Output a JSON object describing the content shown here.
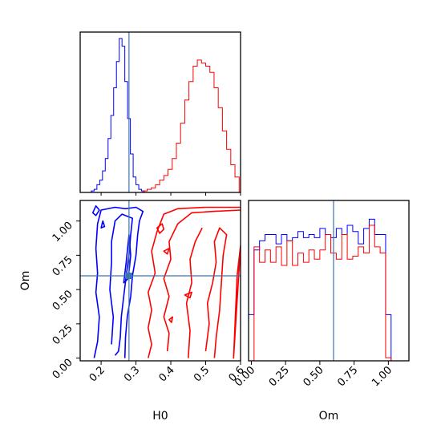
{
  "chart_data": {
    "type": "corner",
    "parameters": [
      "H0",
      "Om"
    ],
    "truth": {
      "H0": 0.28,
      "Om": 0.6
    },
    "colors": {
      "blue": "#0000ff",
      "red": "#ff0000",
      "truth": "#3a76b0"
    },
    "axes": {
      "H0": {
        "label": "H0",
        "range": [
          0.14,
          0.6
        ],
        "ticks": [
          "0.2",
          "0.3",
          "0.4",
          "0.5",
          "0.6"
        ]
      },
      "Om": {
        "label": "Om",
        "range": [
          -0.02,
          1.15
        ],
        "ticks": [
          "0.00",
          "0.25",
          "0.50",
          "0.75",
          "1.00"
        ]
      }
    },
    "hist_H0": {
      "blue": {
        "edges": [
          0.14,
          0.148,
          0.156,
          0.164,
          0.172,
          0.18,
          0.188,
          0.196,
          0.204,
          0.212,
          0.22,
          0.228,
          0.236,
          0.244,
          0.252,
          0.26,
          0.268,
          0.276,
          0.284,
          0.292,
          0.3,
          0.308,
          0.316,
          0.324,
          0.332,
          0.34
        ],
        "counts": [
          0,
          0,
          0,
          0,
          0.01,
          0.02,
          0.05,
          0.08,
          0.14,
          0.22,
          0.35,
          0.5,
          0.68,
          0.85,
          1.0,
          0.95,
          0.72,
          0.48,
          0.25,
          0.1,
          0.05,
          0.02,
          0.01,
          0,
          0
        ]
      },
      "red": {
        "edges": [
          0.32,
          0.332,
          0.344,
          0.356,
          0.368,
          0.38,
          0.392,
          0.404,
          0.416,
          0.428,
          0.44,
          0.452,
          0.464,
          0.476,
          0.488,
          0.5,
          0.512,
          0.524,
          0.536,
          0.548,
          0.56,
          0.572,
          0.584,
          0.596
        ],
        "counts": [
          0.01,
          0.02,
          0.03,
          0.05,
          0.08,
          0.11,
          0.15,
          0.22,
          0.32,
          0.45,
          0.6,
          0.72,
          0.82,
          0.86,
          0.84,
          0.82,
          0.78,
          0.68,
          0.55,
          0.4,
          0.28,
          0.18,
          0.1
        ]
      }
    },
    "hist_Om": {
      "blue": {
        "edges": [
          -0.02,
          0.02,
          0.06,
          0.1,
          0.14,
          0.18,
          0.22,
          0.26,
          0.3,
          0.34,
          0.38,
          0.42,
          0.46,
          0.5,
          0.54,
          0.58,
          0.62,
          0.66,
          0.7,
          0.74,
          0.78,
          0.82,
          0.86,
          0.9,
          0.94,
          0.98,
          1.02,
          1.06,
          1.1,
          1.15
        ],
        "counts": [
          0.3,
          0.72,
          0.78,
          0.82,
          0.82,
          0.76,
          0.82,
          0.78,
          0.8,
          0.84,
          0.8,
          0.82,
          0.8,
          0.86,
          0.82,
          0.8,
          0.86,
          0.82,
          0.88,
          0.84,
          0.76,
          0.86,
          0.92,
          0.82,
          0.82,
          0.3,
          0,
          0,
          0
        ]
      },
      "red": {
        "edges": [
          -0.02,
          0.02,
          0.06,
          0.1,
          0.14,
          0.18,
          0.22,
          0.26,
          0.3,
          0.34,
          0.38,
          0.42,
          0.46,
          0.5,
          0.54,
          0.58,
          0.62,
          0.66,
          0.7,
          0.74,
          0.78,
          0.82,
          0.86,
          0.9,
          0.94,
          0.98,
          1.02,
          1.06,
          1.1,
          1.15
        ],
        "counts": [
          0,
          0.74,
          0.64,
          0.72,
          0.64,
          0.74,
          0.62,
          0.78,
          0.62,
          0.7,
          0.64,
          0.72,
          0.66,
          0.72,
          0.82,
          0.7,
          0.66,
          0.82,
          0.66,
          0.68,
          0.74,
          0.7,
          0.88,
          0.74,
          0.7,
          0.02,
          0,
          0,
          0
        ]
      }
    },
    "contours_2d": {
      "blue": [
        [
          [
            0.18,
            0.0
          ],
          [
            0.19,
            0.12
          ],
          [
            0.195,
            0.3
          ],
          [
            0.185,
            0.48
          ],
          [
            0.19,
            0.62
          ],
          [
            0.185,
            0.8
          ],
          [
            0.19,
            0.98
          ],
          [
            0.2,
            1.08
          ],
          [
            0.24,
            1.1
          ],
          [
            0.27,
            1.09
          ],
          [
            0.3,
            1.1
          ],
          [
            0.32,
            1.07
          ],
          [
            0.31,
            1.0
          ],
          [
            0.305,
            0.9
          ],
          [
            0.3,
            0.75
          ],
          [
            0.29,
            0.6
          ],
          [
            0.285,
            0.45
          ],
          [
            0.275,
            0.3
          ],
          [
            0.27,
            0.15
          ],
          [
            0.268,
            0.0
          ]
        ],
        [
          [
            0.23,
            0.1
          ],
          [
            0.235,
            0.3
          ],
          [
            0.225,
            0.5
          ],
          [
            0.23,
            0.7
          ],
          [
            0.23,
            0.85
          ],
          [
            0.24,
            1.0
          ],
          [
            0.26,
            1.05
          ],
          [
            0.29,
            1.02
          ],
          [
            0.285,
            0.9
          ],
          [
            0.28,
            0.75
          ],
          [
            0.272,
            0.6
          ],
          [
            0.265,
            0.45
          ],
          [
            0.258,
            0.3
          ],
          [
            0.255,
            0.15
          ],
          [
            0.25,
            0.05
          ],
          [
            0.24,
            0.02
          ]
        ],
        [
          [
            0.265,
            0.55
          ],
          [
            0.272,
            0.7
          ],
          [
            0.28,
            0.9
          ],
          [
            0.285,
            0.75
          ],
          [
            0.278,
            0.58
          ]
        ],
        [
          [
            0.176,
            1.06
          ],
          [
            0.185,
            1.11
          ],
          [
            0.195,
            1.08
          ],
          [
            0.185,
            1.04
          ]
        ],
        [
          [
            0.2,
            0.95
          ],
          [
            0.205,
            1.0
          ],
          [
            0.21,
            0.96
          ]
        ]
      ],
      "red": [
        [
          [
            0.335,
            0.0
          ],
          [
            0.345,
            0.1
          ],
          [
            0.335,
            0.22
          ],
          [
            0.345,
            0.35
          ],
          [
            0.335,
            0.48
          ],
          [
            0.355,
            0.62
          ],
          [
            0.345,
            0.78
          ],
          [
            0.36,
            0.92
          ],
          [
            0.38,
            1.05
          ],
          [
            0.42,
            1.09
          ],
          [
            0.5,
            1.1
          ],
          [
            0.6,
            1.1
          ]
        ],
        [
          [
            0.39,
            0.05
          ],
          [
            0.395,
            0.18
          ],
          [
            0.38,
            0.3
          ],
          [
            0.395,
            0.45
          ],
          [
            0.38,
            0.58
          ],
          [
            0.4,
            0.72
          ],
          [
            0.395,
            0.85
          ],
          [
            0.42,
            0.98
          ],
          [
            0.46,
            1.06
          ],
          [
            0.52,
            1.07
          ],
          [
            0.6,
            1.08
          ]
        ],
        [
          [
            0.45,
            0.0
          ],
          [
            0.455,
            0.2
          ],
          [
            0.445,
            0.4
          ],
          [
            0.46,
            0.55
          ],
          [
            0.455,
            0.72
          ],
          [
            0.47,
            0.85
          ],
          [
            0.49,
            0.95
          ]
        ],
        [
          [
            0.5,
            0.05
          ],
          [
            0.51,
            0.25
          ],
          [
            0.505,
            0.4
          ],
          [
            0.52,
            0.55
          ],
          [
            0.53,
            0.7
          ],
          [
            0.525,
            0.85
          ],
          [
            0.54,
            0.95
          ],
          [
            0.56,
            0.9
          ],
          [
            0.55,
            0.75
          ],
          [
            0.545,
            0.55
          ],
          [
            0.54,
            0.35
          ],
          [
            0.53,
            0.15
          ],
          [
            0.525,
            0.0
          ]
        ],
        [
          [
            0.58,
            0.0
          ],
          [
            0.585,
            0.3
          ],
          [
            0.59,
            0.6
          ],
          [
            0.6,
            0.82
          ]
        ],
        [
          [
            0.36,
            0.95
          ],
          [
            0.375,
            0.98
          ],
          [
            0.38,
            0.94
          ],
          [
            0.368,
            0.91
          ]
        ],
        [
          [
            0.38,
            0.78
          ],
          [
            0.395,
            0.8
          ],
          [
            0.39,
            0.76
          ]
        ],
        [
          [
            0.44,
            0.46
          ],
          [
            0.46,
            0.48
          ],
          [
            0.455,
            0.44
          ]
        ],
        [
          [
            0.395,
            0.28
          ],
          [
            0.405,
            0.3
          ],
          [
            0.402,
            0.26
          ]
        ]
      ]
    }
  }
}
